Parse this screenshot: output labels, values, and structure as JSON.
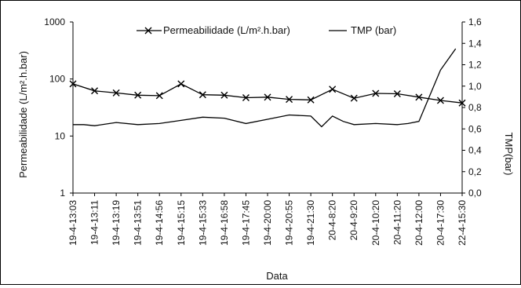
{
  "chart_data": {
    "type": "line",
    "xlabel": "Data",
    "ylabel_left": "Permeabilidade (L/m².h.bar)",
    "ylabel_right": "TMP(bar)",
    "y_left_scale": "log",
    "y_left_ticks": [
      "1",
      "10",
      "100",
      "1000"
    ],
    "y_left_range": [
      1,
      1000
    ],
    "y_right_ticks": [
      "0,0",
      "0,2",
      "0,4",
      "0,6",
      "0,8",
      "1,0",
      "1,2",
      "1,4",
      "1,6"
    ],
    "y_right_range": [
      0,
      1.6
    ],
    "grid": false,
    "legend_position": "top",
    "categories": [
      "19-4-13:03",
      "19-4-13:11",
      "19-4-13:19",
      "19-4-13:51",
      "19-4-14:56",
      "19-4-15:15",
      "19-4-15:33",
      "19-4-16:58",
      "19-4-17:45",
      "19-4-20:00",
      "19-4-20:55",
      "19-4-21:30",
      "20-4-8:20",
      "20-4-9:20",
      "20-4-10:20",
      "20-4-11:20",
      "20-4-12:00",
      "20-4-17:30",
      "22-4-15:30"
    ],
    "series": [
      {
        "name": "Permeabilidade (L/m².h.bar)",
        "axis": "left",
        "marker": "x",
        "x": [
          0,
          1,
          2,
          3,
          4,
          5,
          6,
          7,
          8,
          9,
          10,
          11,
          12,
          13,
          14,
          15,
          16,
          17,
          18
        ],
        "values": [
          82,
          62,
          57,
          52,
          51,
          82,
          53,
          52,
          47,
          48,
          44,
          43,
          66,
          46,
          56,
          55,
          48,
          42,
          38
        ],
        "color": "#000000"
      },
      {
        "name": "TMP (bar)",
        "axis": "right",
        "marker": "none",
        "x": [
          0,
          0.5,
          1,
          2,
          3,
          4,
          5,
          6,
          7,
          8,
          9,
          10,
          11,
          11.5,
          12,
          12.5,
          13,
          14,
          15,
          15.5,
          16,
          17,
          17.7
        ],
        "values": [
          0.64,
          0.64,
          0.63,
          0.66,
          0.64,
          0.65,
          0.68,
          0.71,
          0.7,
          0.65,
          0.69,
          0.73,
          0.72,
          0.62,
          0.72,
          0.67,
          0.64,
          0.65,
          0.64,
          0.65,
          0.67,
          1.15,
          1.35
        ],
        "color": "#000000"
      }
    ]
  }
}
